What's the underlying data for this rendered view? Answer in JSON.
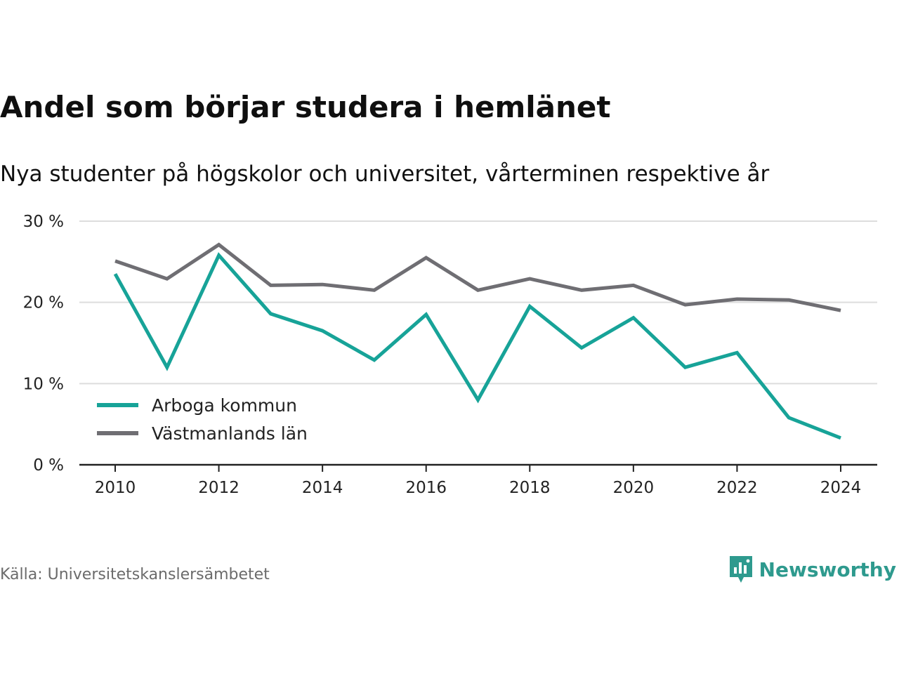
{
  "title": "Andel som börjar studera i hemlänet",
  "subtitle": "Nya studenter på högskolor och universitet, vårterminen respektive år",
  "source": "Källa: Universitetskanslersämbetet",
  "brand": {
    "name": "Newsworthy",
    "icon": "newsworthy-logo-icon",
    "color": "#2e9a8e"
  },
  "colors": {
    "arboga": "#17a398",
    "vastmanland": "#6f6e73",
    "grid": "#dddddd",
    "axis": "#222222"
  },
  "chart_data": {
    "type": "line",
    "x": [
      2010,
      2011,
      2012,
      2013,
      2014,
      2015,
      2016,
      2017,
      2018,
      2019,
      2020,
      2021,
      2022,
      2023,
      2024
    ],
    "xticks": [
      2010,
      2012,
      2014,
      2016,
      2018,
      2020,
      2022,
      2024
    ],
    "xtick_labels": [
      "2010",
      "2012",
      "2014",
      "2016",
      "2018",
      "2020",
      "2022",
      "2024"
    ],
    "ylim": [
      0,
      30
    ],
    "yticks": [
      0,
      10,
      20,
      30
    ],
    "ytick_labels": [
      "0 %",
      "10 %",
      "20 %",
      "30 %"
    ],
    "grid": true,
    "legend_position": "bottom-left",
    "series": [
      {
        "name": "Arboga kommun",
        "color": "#17a398",
        "values": [
          23.5,
          12.0,
          25.8,
          18.6,
          16.5,
          12.9,
          18.5,
          8.0,
          19.5,
          14.4,
          18.1,
          12.0,
          13.8,
          5.8,
          3.3
        ]
      },
      {
        "name": "Västmanlands län",
        "color": "#6f6e73",
        "values": [
          25.1,
          22.9,
          27.1,
          22.1,
          22.2,
          21.5,
          25.5,
          21.5,
          22.9,
          21.5,
          22.1,
          19.7,
          20.4,
          20.3,
          19.0
        ]
      }
    ]
  }
}
